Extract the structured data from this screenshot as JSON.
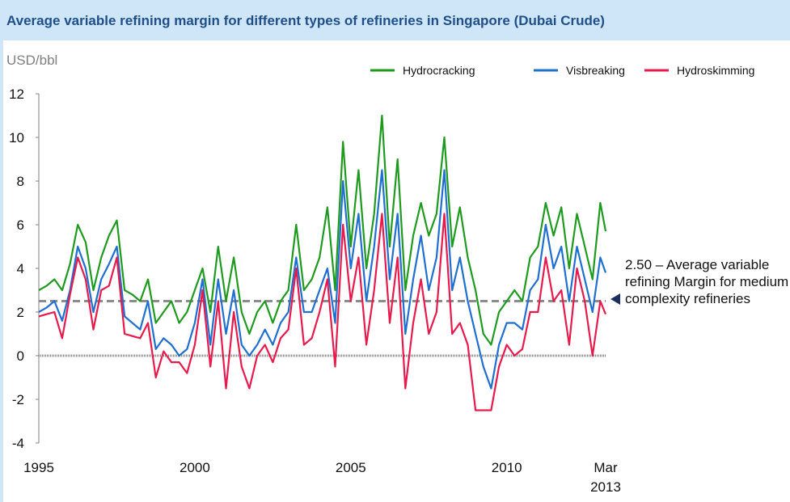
{
  "chart_data": {
    "type": "line",
    "title": "Average variable refining margin for different types of refineries in Singapore (Dubai Crude)",
    "y_label": "USD/bbl",
    "x": [
      1995.0,
      1995.25,
      1995.5,
      1995.75,
      1996.0,
      1996.25,
      1996.5,
      1996.75,
      1997.0,
      1997.25,
      1997.5,
      1997.75,
      1998.0,
      1998.25,
      1998.5,
      1998.75,
      1999.0,
      1999.25,
      1999.5,
      1999.75,
      2000.0,
      2000.25,
      2000.5,
      2000.75,
      2001.0,
      2001.25,
      2001.5,
      2001.75,
      2002.0,
      2002.25,
      2002.5,
      2002.75,
      2003.0,
      2003.25,
      2003.5,
      2003.75,
      2004.0,
      2004.25,
      2004.5,
      2004.75,
      2005.0,
      2005.25,
      2005.5,
      2005.75,
      2006.0,
      2006.25,
      2006.5,
      2006.75,
      2007.0,
      2007.25,
      2007.5,
      2007.75,
      2008.0,
      2008.25,
      2008.5,
      2008.75,
      2009.0,
      2009.25,
      2009.5,
      2009.75,
      2010.0,
      2010.25,
      2010.5,
      2010.75,
      2011.0,
      2011.25,
      2011.5,
      2011.75,
      2012.0,
      2012.25,
      2012.5,
      2012.75,
      2013.0,
      2013.17
    ],
    "series": [
      {
        "name": "Hydrocracking",
        "color": "#1e9b1e",
        "values": [
          3.0,
          3.2,
          3.5,
          3.0,
          4.2,
          6.0,
          5.2,
          3.0,
          4.5,
          5.5,
          6.2,
          3.0,
          2.8,
          2.5,
          3.5,
          1.5,
          2.0,
          2.5,
          1.5,
          2.0,
          3.0,
          4.0,
          2.0,
          5.0,
          2.5,
          4.5,
          2.0,
          1.0,
          2.0,
          2.5,
          1.5,
          2.5,
          3.0,
          6.0,
          3.0,
          3.5,
          4.5,
          6.8,
          3.0,
          9.8,
          5.0,
          8.5,
          4.0,
          6.5,
          11.0,
          5.0,
          9.0,
          3.0,
          5.5,
          7.0,
          5.5,
          6.5,
          10.0,
          5.0,
          6.8,
          4.5,
          3.0,
          1.0,
          0.5,
          2.0,
          2.5,
          3.0,
          2.5,
          4.5,
          5.0,
          7.0,
          5.5,
          6.8,
          4.0,
          6.5,
          5.0,
          3.5,
          7.0,
          5.7
        ]
      },
      {
        "name": "Visbreaking",
        "color": "#1f6fd1",
        "values": [
          2.0,
          2.2,
          2.5,
          1.6,
          3.0,
          5.0,
          4.0,
          2.0,
          3.5,
          4.2,
          5.0,
          1.8,
          1.5,
          1.2,
          2.5,
          0.3,
          0.8,
          0.5,
          0.0,
          0.3,
          1.5,
          3.5,
          0.5,
          3.5,
          1.0,
          3.0,
          0.5,
          0.0,
          0.5,
          1.2,
          0.5,
          1.5,
          2.0,
          4.5,
          2.0,
          2.0,
          3.0,
          4.0,
          1.5,
          8.0,
          4.0,
          6.5,
          2.5,
          5.0,
          8.5,
          3.5,
          6.5,
          1.0,
          3.5,
          5.5,
          3.0,
          4.5,
          8.5,
          3.0,
          4.5,
          2.5,
          1.0,
          -0.5,
          -1.5,
          0.5,
          1.5,
          1.5,
          1.2,
          3.0,
          3.5,
          6.0,
          4.0,
          5.0,
          2.5,
          5.0,
          3.5,
          2.0,
          4.5,
          3.8
        ]
      },
      {
        "name": "Hydroskimming",
        "color": "#e8194b",
        "values": [
          1.8,
          1.9,
          2.0,
          0.8,
          2.8,
          4.5,
          3.5,
          1.2,
          3.0,
          3.2,
          4.5,
          1.0,
          0.9,
          0.8,
          1.5,
          -1.0,
          0.2,
          -0.3,
          -0.3,
          -0.8,
          0.5,
          3.0,
          -0.5,
          2.5,
          -1.5,
          2.0,
          -0.5,
          -1.5,
          0.0,
          0.5,
          -0.3,
          0.8,
          1.2,
          4.0,
          0.5,
          0.8,
          2.0,
          3.5,
          -0.5,
          6.0,
          2.5,
          4.5,
          0.5,
          3.0,
          6.5,
          1.5,
          4.5,
          -1.5,
          1.5,
          3.5,
          1.0,
          2.0,
          6.5,
          1.0,
          1.5,
          0.5,
          -2.5,
          -2.5,
          -2.5,
          -0.5,
          0.5,
          0.0,
          0.3,
          2.0,
          2.0,
          4.5,
          2.5,
          3.0,
          0.5,
          4.0,
          2.5,
          0.0,
          2.5,
          1.9
        ]
      }
    ],
    "xlim": [
      1995,
      2013.17
    ],
    "xticks": [
      1995,
      2000,
      2005,
      2010,
      {
        "value": 2013.17,
        "label": "Mar 2013"
      }
    ],
    "ylim": [
      -4,
      12
    ],
    "yticks": [
      -4,
      -2,
      0,
      2,
      4,
      6,
      8,
      10,
      12
    ],
    "reference_line": {
      "value": 2.5,
      "label": "2.50 – Average variable refining Margin for medium complexity refineries"
    },
    "legend": "top-right"
  }
}
